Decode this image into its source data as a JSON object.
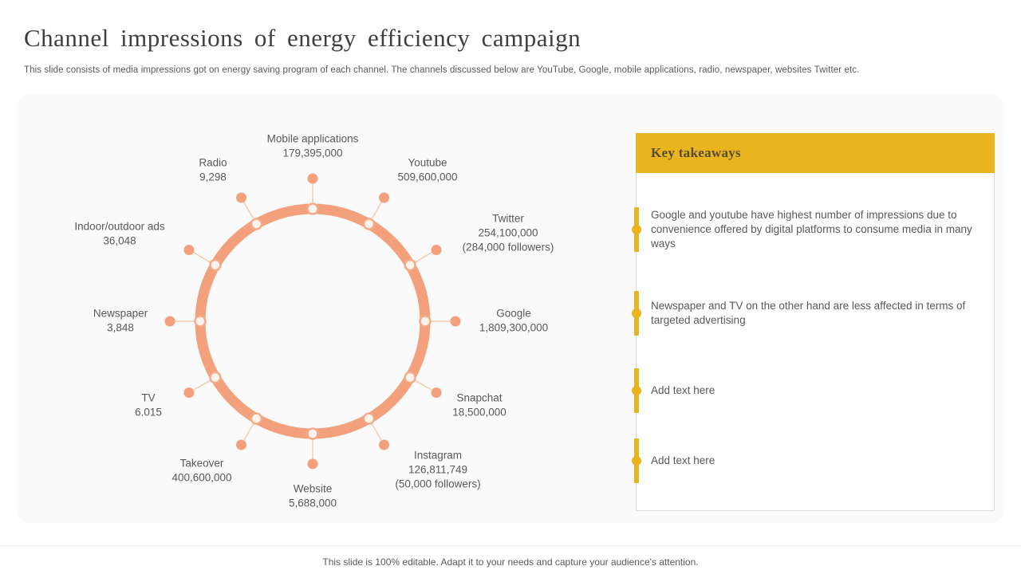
{
  "slide": {
    "title": "Channel impressions of energy efficiency campaign",
    "subtitle": "This slide consists of media impressions got on energy saving program of each channel. The channels discussed below are YouTube, Google, mobile applications, radio, newspaper, websites Twitter etc.",
    "footer": "This slide is 100% editable. Adapt it to your needs and capture your audience's attention."
  },
  "takeaways": {
    "title": "Key takeaways",
    "items": [
      {
        "text": "Google and youtube have highest number of impressions due to convenience offered by digital platforms to consume media in many ways"
      },
      {
        "text": "Newspaper and TV on the other hand are less affected in terms of targeted advertising"
      },
      {
        "text": "Add text here"
      },
      {
        "text": "Add text here"
      }
    ]
  },
  "chart_data": {
    "type": "radial-diagram",
    "title": "Channel impressions of energy efficiency campaign",
    "channels": [
      {
        "name": "Mobile applications",
        "value": "179,395,000"
      },
      {
        "name": "Youtube",
        "value": "509,600,000"
      },
      {
        "name": "Twitter",
        "value": "254,100,000",
        "followers": "(284,000 followers)"
      },
      {
        "name": "Google",
        "value": "1,809,300,000"
      },
      {
        "name": "Snapchat",
        "value": "18,500,000"
      },
      {
        "name": "Instagram",
        "value": "126,811,749",
        "followers": "(50,000 followers)"
      },
      {
        "name": "Website",
        "value": "5,688,000"
      },
      {
        "name": "Takeover",
        "value": "400,600,000"
      },
      {
        "name": "TV",
        "value": "6.015"
      },
      {
        "name": "Newspaper",
        "value": "3,848"
      },
      {
        "name": "Indoor/outdoor ads",
        "value": "36,048"
      },
      {
        "name": "Radio",
        "value": "9,298"
      }
    ]
  },
  "colors": {
    "salmon": "#F2A17C",
    "salmon_node_stroke": "#F3AA87",
    "salmon_node_fill": "#FCF3ED",
    "salmon_line": "#F3C9B1",
    "gold": "#EAB41F",
    "text_dark": "#3F3F3F",
    "text_gray": "#595959"
  }
}
